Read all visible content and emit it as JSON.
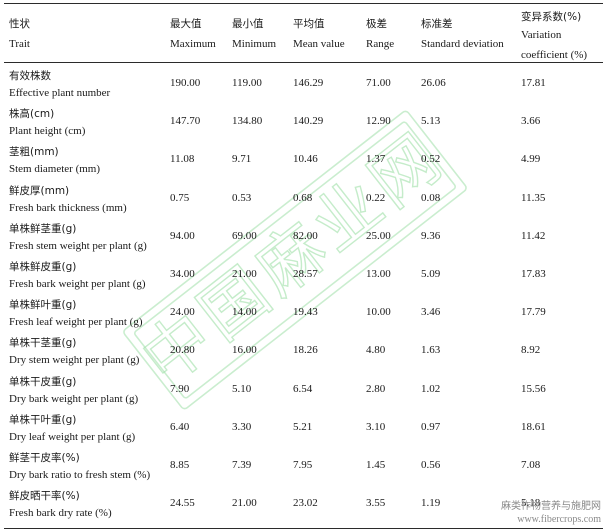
{
  "header": {
    "trait": {
      "zh": "性状",
      "en": "Trait"
    },
    "max": {
      "zh": "最大值",
      "en": "Maximum"
    },
    "min": {
      "zh": "最小值",
      "en": "Minimum"
    },
    "mean": {
      "zh": "平均值",
      "en": "Mean value"
    },
    "range": {
      "zh": "极差",
      "en": "Range"
    },
    "sd": {
      "zh": "标准差",
      "en": "Standard deviation"
    },
    "cv": {
      "zh": "变异系数(%)",
      "en1": "Variation",
      "en2": "coefficient (%)"
    }
  },
  "rows": [
    {
      "zh": "有效株数",
      "en": "Effective plant number",
      "max": "190.00",
      "min": "119.00",
      "mean": "146.29",
      "range": "71.00",
      "sd": "26.06",
      "cv": "17.81"
    },
    {
      "zh": "株高(cm)",
      "en": "Plant height (cm)",
      "max": "147.70",
      "min": "134.80",
      "mean": "140.29",
      "range": "12.90",
      "sd": "5.13",
      "cv": "3.66"
    },
    {
      "zh": "茎粗(mm)",
      "en": "Stem diameter (mm)",
      "max": "11.08",
      "min": "9.71",
      "mean": "10.46",
      "range": "1.37",
      "sd": "0.52",
      "cv": "4.99"
    },
    {
      "zh": "鲜皮厚(mm)",
      "en": "Fresh bark thickness (mm)",
      "max": "0.75",
      "min": "0.53",
      "mean": "0.68",
      "range": "0.22",
      "sd": "0.08",
      "cv": "11.35"
    },
    {
      "zh": "单株鲜茎重(g)",
      "en": "Fresh stem weight per plant (g)",
      "max": "94.00",
      "min": "69.00",
      "mean": "82.00",
      "range": "25.00",
      "sd": "9.36",
      "cv": "11.42"
    },
    {
      "zh": "单株鲜皮重(g)",
      "en": "Fresh bark weight per plant (g)",
      "max": "34.00",
      "min": "21.00",
      "mean": "28.57",
      "range": "13.00",
      "sd": "5.09",
      "cv": "17.83"
    },
    {
      "zh": "单株鲜叶重(g)",
      "en": "Fresh leaf weight per plant (g)",
      "max": "24.00",
      "min": "14.00",
      "mean": "19.43",
      "range": "10.00",
      "sd": "3.46",
      "cv": "17.79"
    },
    {
      "zh": "单株干茎重(g)",
      "en": "Dry stem weight per plant (g)",
      "max": "20.80",
      "min": "16.00",
      "mean": "18.26",
      "range": "4.80",
      "sd": "1.63",
      "cv": "8.92"
    },
    {
      "zh": "单株干皮重(g)",
      "en": "Dry bark weight per plant (g)",
      "max": "7.90",
      "min": "5.10",
      "mean": "6.54",
      "range": "2.80",
      "sd": "1.02",
      "cv": "15.56"
    },
    {
      "zh": "单株干叶重(g)",
      "en": "Dry leaf weight per plant (g)",
      "max": "6.40",
      "min": "3.30",
      "mean": "5.21",
      "range": "3.10",
      "sd": "0.97",
      "cv": "18.61"
    },
    {
      "zh": "鲜茎干皮率(%)",
      "en": "Dry bark ratio to fresh stem (%)",
      "max": "8.85",
      "min": "7.39",
      "mean": "7.95",
      "range": "1.45",
      "sd": "0.56",
      "cv": "7.08"
    },
    {
      "zh": "鲜皮晒干率(%)",
      "en": "Fresh bark dry rate (%)",
      "max": "24.55",
      "min": "21.00",
      "mean": "23.02",
      "range": "3.55",
      "sd": "1.19",
      "cv": "5.18"
    }
  ],
  "watermark": {
    "text": "中国麻业网"
  },
  "corner": {
    "zh": "麻类作物营养与施肥网",
    "url": "www.fibercrops.com"
  }
}
